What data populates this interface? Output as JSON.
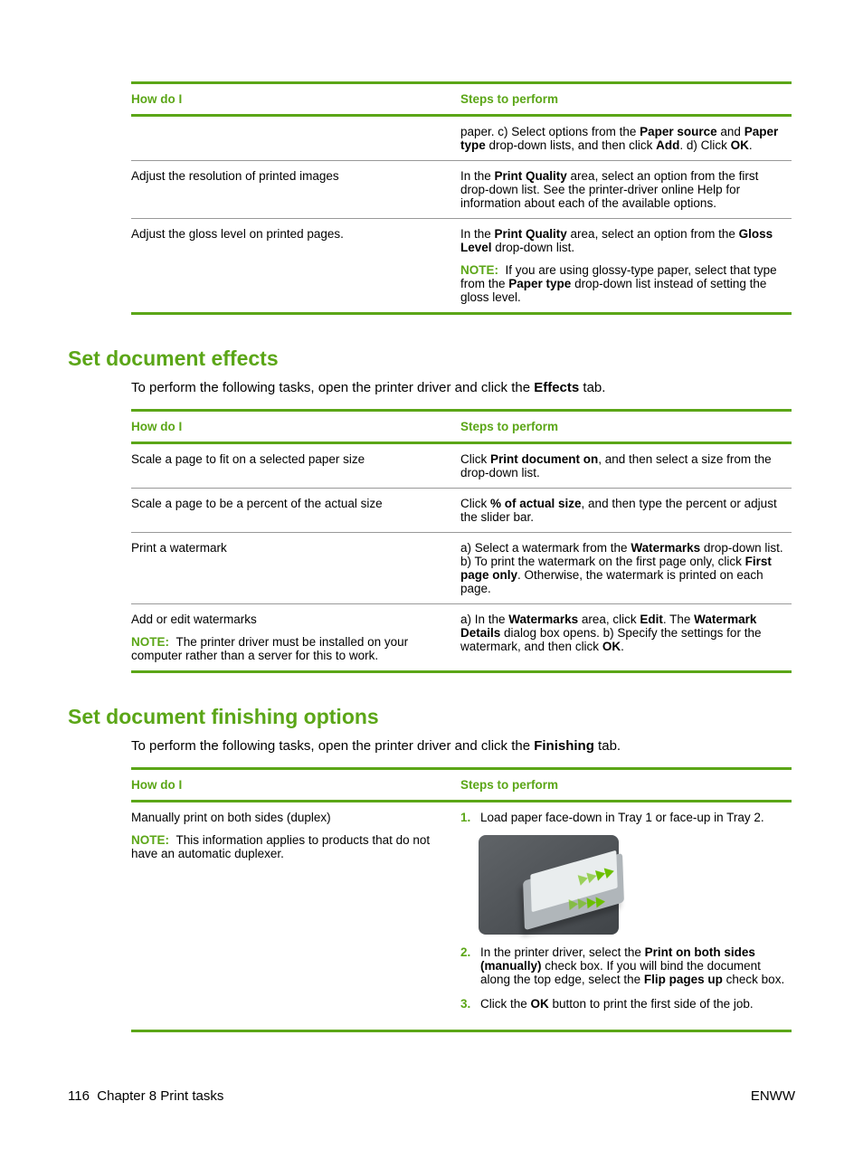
{
  "colors": {
    "accent": "#5ba617",
    "rule": "#999999"
  },
  "footer": {
    "left_page": "116",
    "left_chapter": "Chapter 8   Print tasks",
    "right": "ENWW"
  },
  "table1": {
    "headers": {
      "col1": "How do I",
      "col2": "Steps to perform"
    },
    "rows": [
      {
        "q": "",
        "a_pre": "paper. c) Select options from the ",
        "b1": "Paper source",
        "mid1": " and ",
        "b2": "Paper type",
        "mid2": " drop-down lists, and then click ",
        "b3": "Add",
        "mid3": ". d) Click ",
        "b4": "OK",
        "post": "."
      },
      {
        "q": "Adjust the resolution of printed images",
        "a_pre": "In the ",
        "b1": "Print Quality",
        "post": " area, select an option from the first drop-down list. See the printer-driver online Help for information about each of the available options."
      },
      {
        "q": "Adjust the gloss level on printed pages.",
        "a_pre": "In the ",
        "b1": "Print Quality",
        "mid1": " area, select an option from the ",
        "b2": "Gloss Level",
        "post": " drop-down list.",
        "note_pre": "If you are using glossy-type paper, select that type from the ",
        "note_b": "Paper type",
        "note_post": " drop-down list instead of setting the gloss level."
      }
    ]
  },
  "sec2": {
    "heading": "Set document effects",
    "intro_pre": "To perform the following tasks, open the printer driver and click the ",
    "intro_b": "Effects",
    "intro_post": " tab."
  },
  "table2": {
    "headers": {
      "col1": "How do I",
      "col2": "Steps to perform"
    },
    "rows": [
      {
        "q": "Scale a page to fit on a selected paper size",
        "a_pre": "Click ",
        "b1": "Print document on",
        "post": ", and then select a size from the drop-down list."
      },
      {
        "q": "Scale a page to be a percent of the actual size",
        "a_pre": "Click ",
        "b1": "% of actual size",
        "post": ", and then type the percent or adjust the slider bar."
      },
      {
        "q": "Print a watermark",
        "a_pre": "a) Select a watermark from the ",
        "b1": "Watermarks",
        "mid1": " drop-down list. b) To print the watermark on the first page only, click ",
        "b2": "First page only",
        "post": ". Otherwise, the watermark is printed on each page."
      },
      {
        "q": "Add or edit watermarks",
        "q_note": "The printer driver must be installed on your computer rather than a server for this to work.",
        "a_pre": "a) In the ",
        "b1": "Watermarks",
        "mid1": " area, click ",
        "b2": "Edit",
        "mid2": ". The ",
        "b3": "Watermark Details",
        "mid3": " dialog box opens. b) Specify the settings for the watermark, and then click ",
        "b4": "OK",
        "post": "."
      }
    ]
  },
  "sec3": {
    "heading": "Set document finishing options",
    "intro_pre": "To perform the following tasks, open the printer driver and click the ",
    "intro_b": "Finishing",
    "intro_post": " tab."
  },
  "table3": {
    "headers": {
      "col1": "How do I",
      "col2": "Steps to perform"
    },
    "r0": {
      "q": "Manually print on both sides (duplex)",
      "q_note": "This information applies to products that do not have an automatic duplexer.",
      "steps": [
        {
          "n": "1.",
          "text": "Load paper face-down in Tray 1 or face-up in Tray 2."
        },
        {
          "n": "2.",
          "pre": "In the printer driver, select the ",
          "b1": "Print on both sides (manually)",
          "mid": " check box. If you will bind the document along the top edge, select the ",
          "b2": "Flip pages up",
          "post": " check box."
        },
        {
          "n": "3.",
          "pre": "Click the ",
          "b1": "OK",
          "post": " button to print the first side of the job."
        }
      ]
    }
  },
  "labels": {
    "note": "NOTE:"
  }
}
